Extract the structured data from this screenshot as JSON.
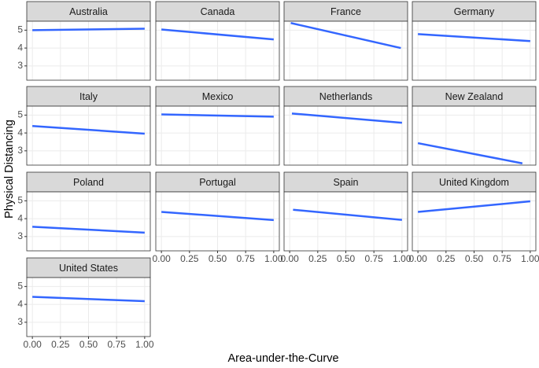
{
  "chart_data": {
    "type": "line",
    "y_label": "Physical Distancing",
    "x_label": "Area-under-the-Curve",
    "xlim": [
      -0.05,
      1.05
    ],
    "xticks": [
      {
        "value": 0,
        "label": "0.00"
      },
      {
        "value": 0.25,
        "label": "0.25"
      },
      {
        "value": 0.5,
        "label": "0.50"
      },
      {
        "value": 0.75,
        "label": "0.75"
      },
      {
        "value": 1,
        "label": "1.00"
      }
    ],
    "ylim": [
      2.2,
      5.5
    ],
    "yticks": [
      3,
      4,
      5
    ],
    "grid": true,
    "color": "#3366ff",
    "panels": [
      {
        "title": "Australia",
        "x": [
          0,
          1
        ],
        "values": [
          5.0,
          5.08
        ]
      },
      {
        "title": "Canada",
        "x": [
          0,
          1
        ],
        "values": [
          5.04,
          4.48
        ]
      },
      {
        "title": "France",
        "x": [
          0.01,
          0.99
        ],
        "values": [
          5.4,
          4.0
        ]
      },
      {
        "title": "Germany",
        "x": [
          0,
          1
        ],
        "values": [
          4.78,
          4.39
        ]
      },
      {
        "title": "Italy",
        "x": [
          0,
          1
        ],
        "values": [
          4.39,
          3.96
        ]
      },
      {
        "title": "Mexico",
        "x": [
          0,
          1
        ],
        "values": [
          5.04,
          4.91
        ]
      },
      {
        "title": "Netherlands",
        "x": [
          0.02,
          1
        ],
        "values": [
          5.09,
          4.57
        ]
      },
      {
        "title": "New Zealand",
        "x": [
          0,
          0.93
        ],
        "values": [
          3.43,
          2.3
        ]
      },
      {
        "title": "Poland",
        "x": [
          0,
          1
        ],
        "values": [
          3.55,
          3.22
        ]
      },
      {
        "title": "Portugal",
        "x": [
          0,
          1
        ],
        "values": [
          4.38,
          3.92
        ]
      },
      {
        "title": "Spain",
        "x": [
          0.03,
          1
        ],
        "values": [
          4.5,
          3.93
        ]
      },
      {
        "title": "United Kingdom",
        "x": [
          0,
          1
        ],
        "values": [
          4.38,
          4.97
        ]
      },
      {
        "title": "United States",
        "x": [
          0,
          1
        ],
        "values": [
          4.42,
          4.18
        ]
      }
    ]
  }
}
